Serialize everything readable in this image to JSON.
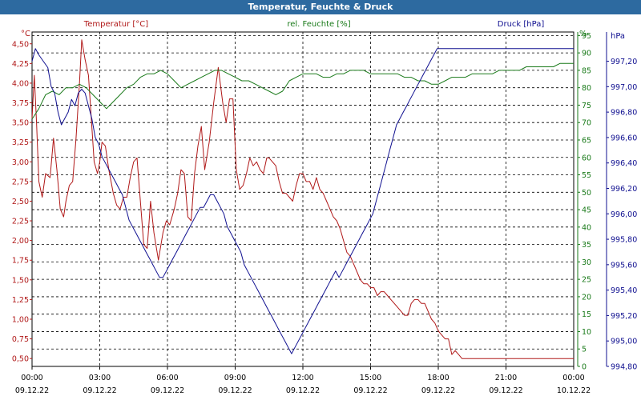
{
  "window": {
    "title": "Temperatur, Feuchte & Druck"
  },
  "chart_data": {
    "type": "line",
    "title": "Temperatur, Feuchte & Druck",
    "grid": true,
    "x_axis": {
      "tick_times": [
        "00:00",
        "03:00",
        "06:00",
        "09:00",
        "12:00",
        "15:00",
        "18:00",
        "21:00",
        "00:00"
      ],
      "tick_dates": [
        "09.12.22",
        "09.12.22",
        "09.12.22",
        "09.12.22",
        "09.12.22",
        "09.12.22",
        "09.12.22",
        "09.12.22",
        "10.12.22"
      ],
      "range_hours": [
        0,
        24
      ]
    },
    "axes": {
      "temperature": {
        "unit": "°C",
        "range": [
          0.4,
          4.65
        ],
        "ticks": [
          "4,50",
          "4,25",
          "4,00",
          "3,75",
          "3,50",
          "3,25",
          "3,00",
          "2,75",
          "2,50",
          "2,25",
          "2,00",
          "1,75",
          "1,50",
          "1,25",
          "1,00",
          "0,75",
          "0,50"
        ],
        "tick_values": [
          4.5,
          4.25,
          4.0,
          3.75,
          3.5,
          3.25,
          3.0,
          2.75,
          2.5,
          2.25,
          2.0,
          1.75,
          1.5,
          1.25,
          1.0,
          0.75,
          0.5
        ]
      },
      "humidity": {
        "unit": "%",
        "range": [
          0,
          96
        ],
        "ticks": [
          "95",
          "90",
          "85",
          "80",
          "75",
          "70",
          "65",
          "60",
          "55",
          "50",
          "45",
          "40",
          "35",
          "30",
          "25",
          "20",
          "15",
          "10",
          "5",
          "0"
        ],
        "tick_values": [
          95,
          90,
          85,
          80,
          75,
          70,
          65,
          60,
          55,
          50,
          45,
          40,
          35,
          30,
          25,
          20,
          15,
          10,
          5,
          0
        ]
      },
      "pressure": {
        "unit": "hPa",
        "range": [
          994.8,
          997.43
        ],
        "ticks": [
          "997,20",
          "997,00",
          "996,80",
          "996,60",
          "996,40",
          "996,20",
          "996,00",
          "995,80",
          "995,60",
          "995,40",
          "995,20",
          "995,00",
          "994,80"
        ],
        "tick_values": [
          997.2,
          997.0,
          996.8,
          996.6,
          996.4,
          996.2,
          996.0,
          995.8,
          995.6,
          995.4,
          995.2,
          995.0,
          994.8
        ]
      }
    },
    "series": [
      {
        "name": "Temperatur [°C]",
        "axis": "temperature",
        "color": "#b01818",
        "x": [
          0,
          0.1,
          0.2,
          0.3,
          0.45,
          0.6,
          0.8,
          0.95,
          1.1,
          1.25,
          1.4,
          1.5,
          1.65,
          1.8,
          1.95,
          2.1,
          2.2,
          2.35,
          2.5,
          2.65,
          2.75,
          2.9,
          3.0,
          3.1,
          3.25,
          3.4,
          3.5,
          3.6,
          3.75,
          3.9,
          4.05,
          4.2,
          4.35,
          4.5,
          4.65,
          4.8,
          4.95,
          5.1,
          5.25,
          5.4,
          5.6,
          5.8,
          5.95,
          6.1,
          6.3,
          6.45,
          6.6,
          6.75,
          6.9,
          7.05,
          7.2,
          7.35,
          7.5,
          7.65,
          7.85,
          8.05,
          8.25,
          8.45,
          8.6,
          8.75,
          8.9,
          9.05,
          9.2,
          9.35,
          9.5,
          9.65,
          9.8,
          9.95,
          10.1,
          10.25,
          10.4,
          10.5,
          10.65,
          10.8,
          10.95,
          11.1,
          11.25,
          11.4,
          11.55,
          11.7,
          11.85,
          12.0,
          12.15,
          12.3,
          12.45,
          12.6,
          12.75,
          12.9,
          13.05,
          13.2,
          13.35,
          13.5,
          13.65,
          13.8,
          13.95,
          14.1,
          14.25,
          14.4,
          14.55,
          14.7,
          14.85,
          15.0,
          15.15,
          15.3,
          15.45,
          15.6,
          15.75,
          15.9,
          16.05,
          16.2,
          16.35,
          16.5,
          16.65,
          16.8,
          16.95,
          17.1,
          17.25,
          17.4,
          17.55,
          17.7,
          17.85,
          18.0,
          18.15,
          18.3,
          18.45,
          18.6,
          18.75,
          18.9,
          19.05,
          19.2,
          19.35,
          19.5,
          19.65,
          19.8,
          19.95,
          20.1,
          20.25,
          20.4,
          20.55,
          20.7,
          20.85,
          21.0,
          21.15,
          21.3,
          21.45,
          21.6,
          21.75,
          21.9,
          22.05,
          22.2,
          22.35,
          22.5,
          22.65,
          22.8,
          22.95,
          23.1,
          23.25,
          23.4,
          23.55,
          23.7,
          23.85,
          24.0
        ],
        "values": [
          3.55,
          4.1,
          3.5,
          2.75,
          2.55,
          2.85,
          2.8,
          3.3,
          2.9,
          2.4,
          2.3,
          2.5,
          2.7,
          2.75,
          3.3,
          4.0,
          4.55,
          4.3,
          4.1,
          3.45,
          3.0,
          2.85,
          3.0,
          3.25,
          3.2,
          2.9,
          2.75,
          2.6,
          2.45,
          2.4,
          2.55,
          2.55,
          2.8,
          3.0,
          3.05,
          2.5,
          1.95,
          1.9,
          2.5,
          2.1,
          1.75,
          2.1,
          2.25,
          2.2,
          2.4,
          2.6,
          2.9,
          2.85,
          2.3,
          2.25,
          2.85,
          3.2,
          3.45,
          2.9,
          3.25,
          3.75,
          4.2,
          3.75,
          3.5,
          3.8,
          3.8,
          2.9,
          2.65,
          2.7,
          2.85,
          3.05,
          2.95,
          3.0,
          2.9,
          2.85,
          3.05,
          3.05,
          3.0,
          2.95,
          2.75,
          2.6,
          2.6,
          2.55,
          2.5,
          2.7,
          2.85,
          2.85,
          2.75,
          2.75,
          2.65,
          2.8,
          2.65,
          2.6,
          2.5,
          2.4,
          2.3,
          2.25,
          2.15,
          2.0,
          1.85,
          1.8,
          1.7,
          1.6,
          1.5,
          1.45,
          1.45,
          1.4,
          1.4,
          1.3,
          1.35,
          1.35,
          1.3,
          1.25,
          1.2,
          1.15,
          1.1,
          1.05,
          1.05,
          1.2,
          1.25,
          1.25,
          1.2,
          1.2,
          1.1,
          1.0,
          0.95,
          0.85,
          0.8,
          0.75,
          0.75,
          0.55,
          0.6,
          0.55,
          0.5,
          0.5,
          0.5,
          0.5,
          0.5,
          0.5,
          0.5,
          0.5,
          0.5,
          0.5,
          0.5,
          0.5,
          0.5,
          0.5,
          0.5,
          0.5,
          0.5,
          0.5,
          0.5,
          0.5,
          0.5,
          0.5,
          0.5,
          0.5,
          0.5,
          0.5,
          0.5,
          0.5,
          0.5,
          0.5,
          0.5,
          0.5,
          0.5,
          0.5
        ]
      },
      {
        "name": "rel. Feuchte [%]",
        "axis": "humidity",
        "color": "#1a7a1a",
        "x": [
          0,
          0.3,
          0.6,
          0.9,
          1.2,
          1.5,
          1.8,
          2.1,
          2.4,
          2.7,
          3.0,
          3.3,
          3.6,
          3.9,
          4.2,
          4.5,
          4.8,
          5.1,
          5.4,
          5.7,
          6.0,
          6.3,
          6.6,
          6.9,
          7.2,
          7.5,
          7.8,
          8.1,
          8.4,
          8.7,
          9.0,
          9.3,
          9.6,
          9.9,
          10.2,
          10.5,
          10.8,
          11.1,
          11.4,
          11.7,
          12.0,
          12.3,
          12.6,
          12.9,
          13.2,
          13.5,
          13.8,
          14.1,
          14.4,
          14.7,
          15.0,
          15.3,
          15.6,
          15.9,
          16.2,
          16.5,
          16.8,
          17.1,
          17.4,
          17.7,
          18.0,
          18.3,
          18.6,
          18.9,
          19.2,
          19.5,
          19.8,
          20.1,
          20.4,
          20.7,
          21.0,
          21.3,
          21.6,
          21.9,
          22.2,
          22.5,
          22.8,
          23.1,
          23.4,
          23.7,
          24.0
        ],
        "values": [
          71,
          74,
          78,
          79,
          78,
          80,
          80,
          81,
          80,
          78,
          76,
          74,
          76,
          78,
          80,
          81,
          83,
          84,
          84,
          85,
          84,
          82,
          80,
          81,
          82,
          83,
          84,
          85,
          85,
          84,
          83,
          82,
          82,
          81,
          80,
          79,
          78,
          79,
          82,
          83,
          84,
          84,
          84,
          83,
          83,
          84,
          84,
          85,
          85,
          85,
          84,
          84,
          84,
          84,
          84,
          83,
          83,
          82,
          82,
          81,
          81,
          82,
          83,
          83,
          83,
          84,
          84,
          84,
          84,
          85,
          85,
          85,
          85,
          86,
          86,
          86,
          86,
          86,
          87,
          87,
          87
        ]
      },
      {
        "name": "Druck [hPa]",
        "axis": "pressure",
        "color": "#101090",
        "x": [
          0,
          0.15,
          0.3,
          0.5,
          0.7,
          0.85,
          1.0,
          1.15,
          1.3,
          1.45,
          1.6,
          1.75,
          1.9,
          2.05,
          2.2,
          2.35,
          2.5,
          2.65,
          2.8,
          2.95,
          3.1,
          3.25,
          3.4,
          3.55,
          3.7,
          3.85,
          4.0,
          4.15,
          4.3,
          4.45,
          4.6,
          4.75,
          4.9,
          5.05,
          5.2,
          5.35,
          5.5,
          5.65,
          5.8,
          5.95,
          6.1,
          6.25,
          6.4,
          6.55,
          6.7,
          6.85,
          7.0,
          7.15,
          7.3,
          7.45,
          7.6,
          7.75,
          7.9,
          8.05,
          8.2,
          8.35,
          8.5,
          8.65,
          8.8,
          8.95,
          9.1,
          9.25,
          9.4,
          9.55,
          9.7,
          9.85,
          10.0,
          10.15,
          10.3,
          10.45,
          10.6,
          10.75,
          10.9,
          11.05,
          11.2,
          11.35,
          11.5,
          11.65,
          11.8,
          11.95,
          12.1,
          12.25,
          12.4,
          12.55,
          12.7,
          12.85,
          13.0,
          13.15,
          13.3,
          13.45,
          13.6,
          13.75,
          13.9,
          14.05,
          14.2,
          14.35,
          14.5,
          14.65,
          14.8,
          14.95,
          15.1,
          15.25,
          15.4,
          15.55,
          15.7,
          15.85,
          16.0,
          16.15,
          16.3,
          16.45,
          16.6,
          16.75,
          16.9,
          17.05,
          17.2,
          17.35,
          17.5,
          17.65,
          17.8,
          17.95,
          18.1,
          18.25,
          18.4,
          18.55,
          18.7,
          18.85,
          19.0,
          19.15,
          19.3,
          19.45,
          19.6,
          19.75,
          19.9,
          20.05,
          20.2,
          20.35,
          20.5,
          20.65,
          20.8,
          20.95,
          21.1,
          21.25,
          21.4,
          21.55,
          21.7,
          21.85,
          22.0,
          22.15,
          22.3,
          22.45,
          22.6,
          22.75,
          22.9,
          23.05,
          23.2,
          23.35,
          23.5,
          23.65,
          23.8,
          23.95,
          24.0
        ],
        "values": [
          997.2,
          997.3,
          997.25,
          997.2,
          997.15,
          997.0,
          996.95,
          996.8,
          996.7,
          996.75,
          996.8,
          996.9,
          996.85,
          996.95,
          996.98,
          996.95,
          996.85,
          996.75,
          996.6,
          996.55,
          996.45,
          996.4,
          996.35,
          996.3,
          996.25,
          996.2,
          996.15,
          996.05,
          995.95,
          995.9,
          995.85,
          995.8,
          995.75,
          995.7,
          995.65,
          995.6,
          995.55,
          995.5,
          995.5,
          995.55,
          995.6,
          995.65,
          995.7,
          995.75,
          995.8,
          995.85,
          995.9,
          995.95,
          996.0,
          996.05,
          996.05,
          996.1,
          996.15,
          996.15,
          996.1,
          996.05,
          996.0,
          995.9,
          995.85,
          995.8,
          995.75,
          995.7,
          995.6,
          995.55,
          995.5,
          995.45,
          995.4,
          995.35,
          995.3,
          995.25,
          995.2,
          995.15,
          995.1,
          995.05,
          995.0,
          994.95,
          994.9,
          994.95,
          995.0,
          995.05,
          995.1,
          995.15,
          995.2,
          995.25,
          995.3,
          995.35,
          995.4,
          995.45,
          995.5,
          995.55,
          995.5,
          995.55,
          995.6,
          995.65,
          995.7,
          995.75,
          995.8,
          995.85,
          995.9,
          995.95,
          996.0,
          996.1,
          996.2,
          996.3,
          996.4,
          996.5,
          996.6,
          996.7,
          996.75,
          996.8,
          996.85,
          996.9,
          996.95,
          997.0,
          997.05,
          997.1,
          997.15,
          997.2,
          997.25,
          997.3,
          997.3,
          997.3,
          997.3,
          997.3,
          997.3,
          997.3,
          997.3,
          997.3,
          997.3,
          997.3,
          997.3,
          997.3,
          997.3,
          997.3,
          997.3,
          997.3,
          997.3,
          997.3,
          997.3,
          997.3,
          997.3,
          997.3,
          997.3,
          997.3,
          997.3,
          997.3,
          997.3,
          997.3,
          997.3,
          997.3,
          997.3,
          997.3,
          997.3,
          997.3,
          997.3,
          997.3,
          997.3,
          997.3,
          997.3,
          997.3,
          997.3
        ]
      }
    ]
  }
}
